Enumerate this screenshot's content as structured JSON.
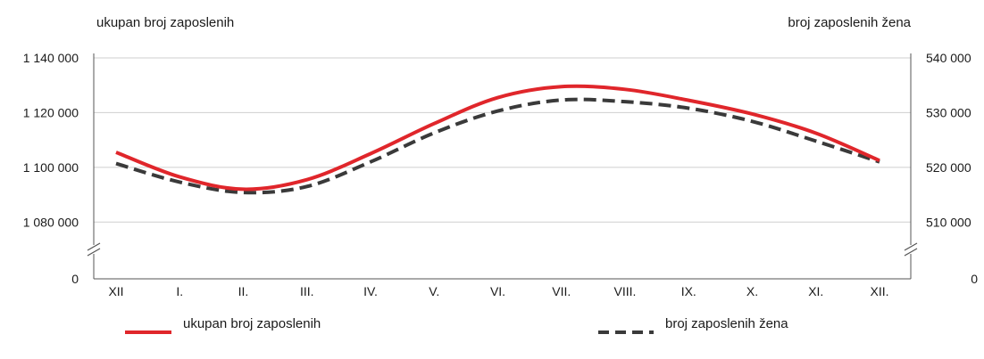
{
  "chart_data": {
    "type": "line",
    "left_axis_title": "ukupan broj zaposlenih",
    "right_axis_title": "broj zaposlenih žena",
    "categories": [
      "XII",
      "I.",
      "II.",
      "III.",
      "IV.",
      "V.",
      "VI.",
      "VII.",
      "VIII.",
      "IX.",
      "X.",
      "XI.",
      "XII."
    ],
    "y_left": {
      "ylim": [
        1070000,
        1140000
      ],
      "ticks": [
        1080000,
        1100000,
        1120000,
        1140000
      ],
      "tick_labels": [
        "1 080 000",
        "1 100 000",
        "1 120 000",
        "1 140 000"
      ],
      "zero_label": "0",
      "axis_break": true
    },
    "y_right": {
      "ylim": [
        505000,
        540000
      ],
      "ticks": [
        510000,
        520000,
        530000,
        540000
      ],
      "tick_labels": [
        "510 000",
        "520 000",
        "530 000",
        "540 000"
      ],
      "zero_label": "0",
      "axis_break": true
    },
    "grid": true,
    "legend_position": "bottom",
    "series": [
      {
        "name": "ukupan broj zaposlenih",
        "axis": "left",
        "style": "solid",
        "color": "#e0262b",
        "values": [
          1105500,
          1096500,
          1092000,
          1095500,
          1105000,
          1116000,
          1125500,
          1129500,
          1128500,
          1124500,
          1119500,
          1112500,
          1102500
        ]
      },
      {
        "name": "broj zaposlenih žena",
        "axis": "right",
        "style": "dashed",
        "color": "#3a3a3a",
        "values": [
          520700,
          517300,
          515400,
          516500,
          521000,
          526300,
          530300,
          532300,
          532000,
          530800,
          528400,
          524800,
          521000
        ]
      }
    ]
  }
}
